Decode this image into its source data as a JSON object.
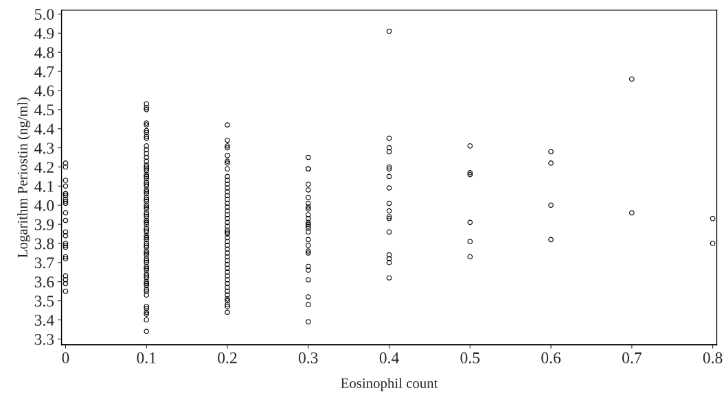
{
  "chart_data": {
    "type": "scatter",
    "xlabel": "Eosinophil count",
    "ylabel": "Logarithm Periostin (ng/ml)",
    "xlim": [
      -0.005,
      0.805
    ],
    "ylim": [
      3.27,
      5.02
    ],
    "xticks": [
      0,
      0.1,
      0.2,
      0.3,
      0.4,
      0.5,
      0.6,
      0.7,
      0.8
    ],
    "yticks": [
      3.3,
      3.4,
      3.5,
      3.6,
      3.7,
      3.8,
      3.9,
      {
        "value": 4.0,
        "label": "4.0"
      },
      4.1,
      4.2,
      4.3,
      4.4,
      4.5,
      4.6,
      4.7,
      4.8,
      4.9,
      {
        "value": 5.0,
        "label": "5.0"
      }
    ],
    "marker": "circle",
    "grid": false,
    "legend": false,
    "series": [
      {
        "color": "#000000",
        "x": [
          0,
          0,
          0,
          0,
          0,
          0,
          0,
          0,
          0,
          0,
          0,
          0,
          0,
          0,
          0,
          0,
          0,
          0,
          0,
          0,
          0,
          0,
          0,
          0.1,
          0.1,
          0.1,
          0.1,
          0.1,
          0.1,
          0.1,
          0.1,
          0.1,
          0.1,
          0.1,
          0.1,
          0.1,
          0.1,
          0.1,
          0.1,
          0.1,
          0.1,
          0.1,
          0.1,
          0.1,
          0.1,
          0.1,
          0.1,
          0.1,
          0.1,
          0.1,
          0.1,
          0.1,
          0.1,
          0.1,
          0.1,
          0.1,
          0.1,
          0.1,
          0.1,
          0.1,
          0.1,
          0.1,
          0.1,
          0.1,
          0.1,
          0.1,
          0.1,
          0.1,
          0.1,
          0.1,
          0.1,
          0.1,
          0.1,
          0.1,
          0.1,
          0.1,
          0.1,
          0.1,
          0.1,
          0.1,
          0.1,
          0.1,
          0.1,
          0.1,
          0.1,
          0.1,
          0.1,
          0.1,
          0.1,
          0.1,
          0.1,
          0.1,
          0.1,
          0.1,
          0.1,
          0.2,
          0.2,
          0.2,
          0.2,
          0.2,
          0.2,
          0.2,
          0.2,
          0.2,
          0.2,
          0.2,
          0.2,
          0.2,
          0.2,
          0.2,
          0.2,
          0.2,
          0.2,
          0.2,
          0.2,
          0.2,
          0.2,
          0.2,
          0.2,
          0.2,
          0.2,
          0.2,
          0.2,
          0.2,
          0.2,
          0.2,
          0.2,
          0.2,
          0.2,
          0.2,
          0.2,
          0.2,
          0.2,
          0.2,
          0.2,
          0.2,
          0.2,
          0.2,
          0.2,
          0.2,
          0.2,
          0.3,
          0.3,
          0.3,
          0.3,
          0.3,
          0.3,
          0.3,
          0.3,
          0.3,
          0.3,
          0.3,
          0.3,
          0.3,
          0.3,
          0.3,
          0.3,
          0.3,
          0.3,
          0.3,
          0.3,
          0.3,
          0.3,
          0.3,
          0.3,
          0.3,
          0.3,
          0.4,
          0.4,
          0.4,
          0.4,
          0.4,
          0.4,
          0.4,
          0.4,
          0.4,
          0.4,
          0.4,
          0.4,
          0.4,
          0.4,
          0.4,
          0.4,
          0.4,
          0.5,
          0.5,
          0.5,
          0.5,
          0.5,
          0.5,
          0.6,
          0.6,
          0.6,
          0.6,
          0.7,
          0.7,
          0.8,
          0.8
        ],
        "values": [
          4.22,
          4.2,
          4.13,
          4.1,
          4.06,
          4.06,
          4.05,
          4.03,
          4.02,
          4.01,
          3.96,
          3.92,
          3.86,
          3.84,
          3.8,
          3.79,
          3.78,
          3.73,
          3.72,
          3.63,
          3.61,
          3.59,
          3.55,
          4.53,
          4.51,
          4.5,
          4.43,
          4.42,
          4.39,
          4.38,
          4.36,
          4.35,
          4.31,
          4.29,
          4.27,
          4.25,
          4.23,
          4.21,
          4.2,
          4.18,
          4.16,
          4.14,
          4.12,
          4.1,
          4.08,
          4.06,
          4.04,
          4.02,
          4.0,
          3.98,
          3.96,
          3.94,
          3.92,
          3.9,
          3.88,
          3.86,
          3.84,
          3.82,
          3.8,
          3.78,
          3.76,
          3.74,
          3.72,
          3.7,
          3.68,
          3.66,
          3.64,
          3.62,
          3.6,
          3.58,
          3.56,
          3.55,
          3.53,
          3.47,
          3.46,
          3.44,
          3.43,
          3.4,
          3.34,
          4.19,
          4.15,
          4.11,
          4.07,
          4.03,
          3.99,
          3.95,
          3.91,
          3.87,
          3.83,
          3.79,
          3.75,
          3.71,
          3.67,
          3.63,
          3.59,
          4.42,
          4.34,
          4.31,
          4.3,
          4.26,
          4.23,
          4.22,
          4.19,
          4.15,
          4.13,
          4.11,
          4.09,
          4.07,
          4.05,
          4.03,
          4.01,
          3.99,
          3.97,
          3.95,
          3.93,
          3.91,
          3.89,
          3.87,
          3.85,
          3.83,
          3.81,
          3.79,
          3.77,
          3.75,
          3.73,
          3.71,
          3.69,
          3.67,
          3.65,
          3.63,
          3.61,
          3.59,
          3.57,
          3.55,
          3.53,
          3.51,
          3.5,
          3.48,
          3.47,
          3.44,
          3.86,
          4.25,
          4.19,
          4.19,
          4.11,
          4.08,
          4.04,
          4.01,
          3.99,
          3.98,
          3.95,
          3.93,
          3.91,
          3.9,
          3.89,
          3.88,
          3.86,
          3.82,
          3.79,
          3.76,
          3.75,
          3.68,
          3.66,
          3.61,
          3.52,
          3.48,
          3.39,
          4.91,
          4.35,
          4.3,
          4.28,
          4.2,
          4.19,
          4.15,
          4.09,
          4.01,
          3.97,
          3.94,
          3.93,
          3.86,
          3.74,
          3.72,
          3.7,
          3.62,
          4.31,
          4.17,
          4.16,
          3.91,
          3.81,
          3.73,
          4.28,
          4.22,
          4.0,
          3.82,
          4.66,
          3.96,
          3.93,
          3.8
        ]
      }
    ]
  }
}
